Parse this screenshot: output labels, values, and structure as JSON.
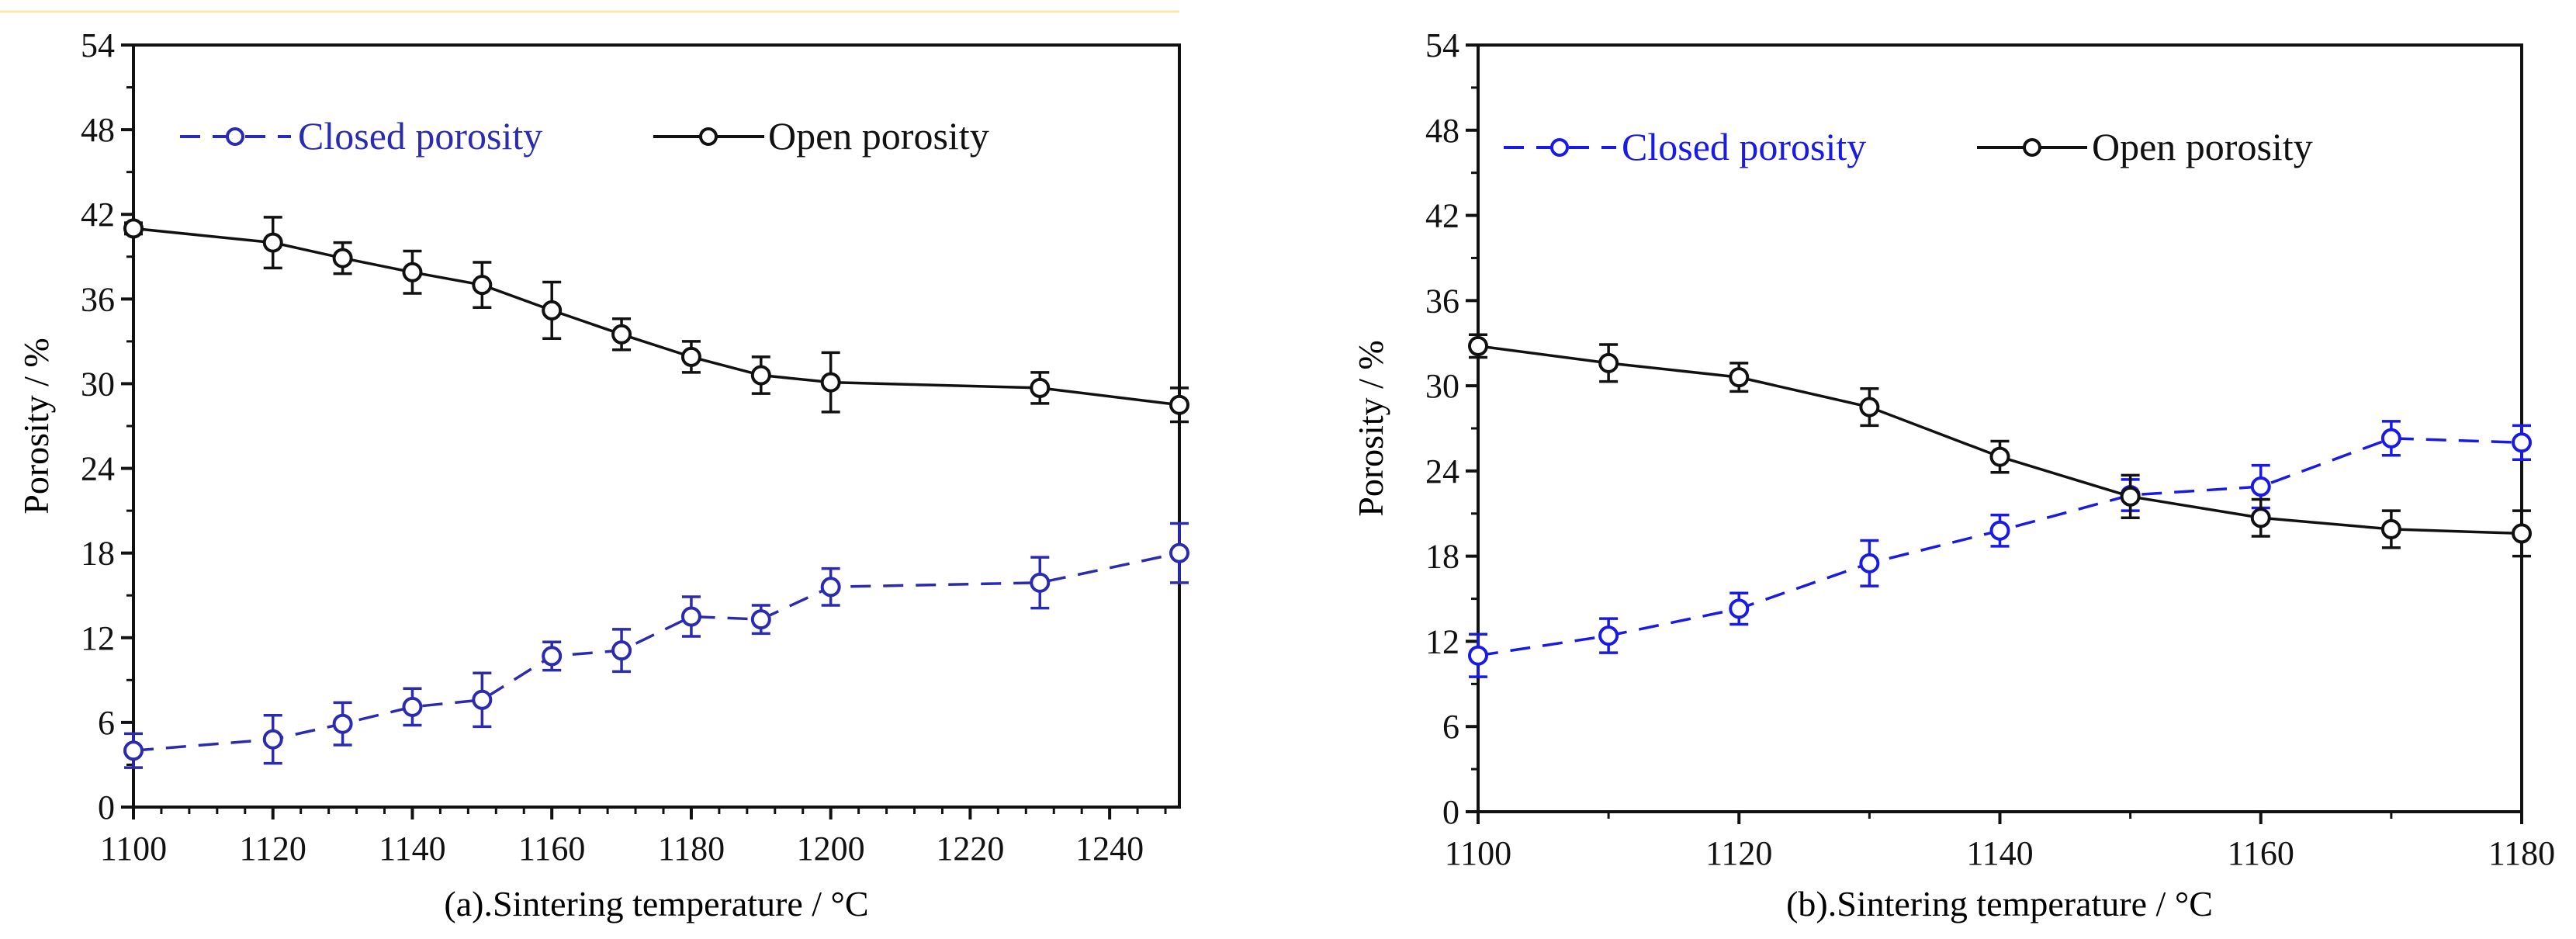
{
  "chart_data": [
    {
      "type": "line",
      "xlabel": "(a).Sintering temperature / °C",
      "ylabel": "Porosity / %",
      "xlim": [
        1100,
        1250
      ],
      "ylim": [
        0,
        54
      ],
      "xticks": [
        "1100",
        "1120",
        "1140",
        "1160",
        "1180",
        "1200",
        "1220",
        "1240"
      ],
      "yticks": [
        "0",
        "6",
        "12",
        "18",
        "24",
        "30",
        "36",
        "42",
        "48",
        "54"
      ],
      "legend_position": "top",
      "series": [
        {
          "name": "Closed porosity",
          "color": "#2b2bb0",
          "style": "dashed",
          "x": [
            1100,
            1120,
            1130,
            1140,
            1150,
            1160,
            1170,
            1180,
            1190,
            1200,
            1230,
            1250
          ],
          "y": [
            4.0,
            4.8,
            5.9,
            7.1,
            7.6,
            10.7,
            11.1,
            13.5,
            13.3,
            15.6,
            15.9,
            18.0
          ],
          "err": [
            1.2,
            1.7,
            1.5,
            1.3,
            1.9,
            1.0,
            1.5,
            1.4,
            1.0,
            1.3,
            1.8,
            2.1
          ]
        },
        {
          "name": "Open porosity",
          "color": "#111111",
          "style": "solid",
          "x": [
            1100,
            1120,
            1130,
            1140,
            1150,
            1160,
            1170,
            1180,
            1190,
            1200,
            1230,
            1250
          ],
          "y": [
            41.0,
            40.0,
            38.9,
            37.9,
            37.0,
            35.2,
            33.5,
            31.9,
            30.6,
            30.1,
            29.7,
            28.5
          ],
          "err": [
            0.4,
            1.8,
            1.1,
            1.5,
            1.6,
            2.0,
            1.1,
            1.1,
            1.3,
            2.1,
            1.1,
            1.2
          ]
        }
      ]
    },
    {
      "type": "line",
      "xlabel": "(b).Sintering temperature / °C",
      "ylabel": "Porosity / %",
      "xlim": [
        1100,
        1180
      ],
      "ylim": [
        0,
        54
      ],
      "xticks": [
        "1100",
        "1120",
        "1140",
        "1160",
        "1180"
      ],
      "yticks": [
        "0",
        "6",
        "12",
        "18",
        "24",
        "30",
        "36",
        "42",
        "48",
        "54"
      ],
      "legend_position": "top",
      "series": [
        {
          "name": "Closed porosity",
          "color": "#1a1ae6",
          "style": "dashed",
          "x": [
            1100,
            1110,
            1120,
            1130,
            1140,
            1150,
            1160,
            1170,
            1180
          ],
          "y": [
            11.0,
            12.4,
            14.3,
            17.5,
            19.8,
            22.3,
            22.9,
            26.3,
            26.0
          ],
          "err": [
            1.5,
            1.2,
            1.1,
            1.6,
            1.1,
            1.1,
            1.5,
            1.2,
            1.2
          ]
        },
        {
          "name": "Open porosity",
          "color": "#111111",
          "style": "solid",
          "x": [
            1100,
            1110,
            1120,
            1130,
            1140,
            1150,
            1160,
            1170,
            1180
          ],
          "y": [
            32.8,
            31.6,
            30.6,
            28.5,
            25.0,
            22.2,
            20.7,
            19.9,
            19.6
          ],
          "err": [
            0.8,
            1.3,
            1.0,
            1.3,
            1.1,
            1.5,
            1.3,
            1.3,
            1.6
          ]
        }
      ]
    }
  ]
}
